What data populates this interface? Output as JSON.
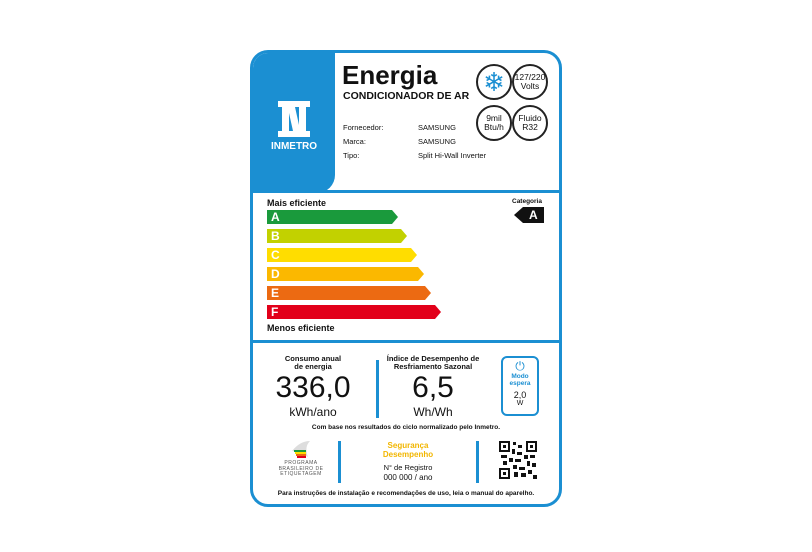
{
  "header": {
    "title": "Energia",
    "subtitle": "CONDICIONADOR DE AR",
    "logo_text": "INMETRO",
    "fields": [
      {
        "label": "Fornecedor:",
        "value": "SAMSUNG"
      },
      {
        "label": "Marca:",
        "value": "SAMSUNG"
      },
      {
        "label": "Tipo:",
        "value": "Split Hi-Wall Inverter"
      }
    ],
    "badges": {
      "voltage_top": "127/220",
      "voltage_bottom": "Volts",
      "capacity_top": "9mil",
      "capacity_bottom": "Btu/h",
      "fluid_top": "Fluido",
      "fluid_bottom": "R32"
    },
    "icon": "snowflake-icon"
  },
  "scale": {
    "top_label": "Mais eficiente",
    "bottom_label": "Menos eficiente",
    "category_label": "Categoria",
    "category": "A",
    "classes": [
      {
        "letter": "A",
        "color": "#1a9a3c"
      },
      {
        "letter": "B",
        "color": "#c2d100"
      },
      {
        "letter": "C",
        "color": "#ffdd00"
      },
      {
        "letter": "D",
        "color": "#fbb800"
      },
      {
        "letter": "E",
        "color": "#ec6a12"
      },
      {
        "letter": "F",
        "color": "#e2001a"
      }
    ]
  },
  "metrics": {
    "consumption_label_1": "Consumo anual",
    "consumption_label_2": "de energia",
    "consumption_value": "336,0",
    "consumption_unit": "kWh/ano",
    "index_label_1": "Índice de Desempenho de",
    "index_label_2": "Resfriamento Sazonal",
    "index_value": "6,5",
    "index_unit": "Wh/Wh",
    "standby_label_1": "Modo",
    "standby_label_2": "espera",
    "standby_value": "2,0",
    "standby_unit": "W",
    "note": "Com base nos resultados do ciclo normalizado pelo Inmetro."
  },
  "footer": {
    "program_1": "PROGRAMA",
    "program_2": "BRASILEIRO DE",
    "program_3": "ETIQUETAGEM",
    "safety_1": "Segurança",
    "safety_2": "Desempenho",
    "registry_label": "N° de Registro",
    "registry_value": "000 000 / ano",
    "instructions": "Para instruções de instalação e recomendações de uso, leia o manual do aparelho."
  },
  "colors": {
    "brand": "#1b8fd2",
    "safety": "#f2b600"
  }
}
